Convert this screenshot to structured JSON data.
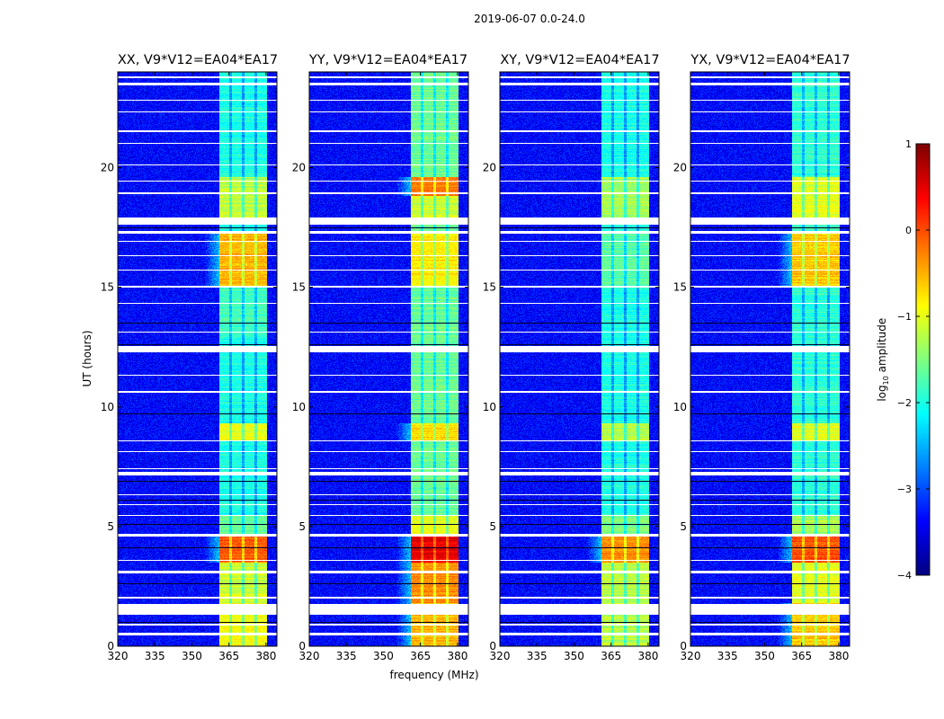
{
  "chart_data": {
    "type": "heatmap",
    "title": "2019-06-07 0.0-24.0",
    "xlabel": "frequency (MHz)",
    "ylabel": "UT (hours)",
    "xlim": [
      320,
      384.4
    ],
    "ylim": [
      0,
      24
    ],
    "x_ticks": [
      "320",
      "335",
      "350",
      "365",
      "380"
    ],
    "y_ticks": [
      "0",
      "5",
      "10",
      "15",
      "20"
    ],
    "colormap": "jet",
    "colorbar": {
      "label_main": "log",
      "label_sub": "10",
      "label_rest": " amplitude",
      "range": [
        -4,
        1
      ],
      "ticks": [
        "1",
        "0",
        "−1",
        "−2",
        "−3",
        "−4"
      ]
    },
    "band_mhz": [
      361,
      380.5
    ],
    "subband_edges_mhz": [
      365.6,
      370.8,
      375.9
    ],
    "noise_floor_log10": -3.35,
    "flagged_hours": [
      [
        0.45,
        0.55
      ],
      [
        0.85,
        0.95
      ],
      [
        1.3,
        1.75
      ],
      [
        2.0,
        2.08
      ],
      [
        3.05,
        3.15
      ],
      [
        3.55,
        3.62
      ],
      [
        4.58,
        4.68
      ],
      [
        5.45,
        5.5
      ],
      [
        5.9,
        5.95
      ],
      [
        6.3,
        6.35
      ],
      [
        7.15,
        7.3
      ],
      [
        7.4,
        7.45
      ],
      [
        8.1,
        8.15
      ],
      [
        8.55,
        8.6
      ],
      [
        10.6,
        10.65
      ],
      [
        11.3,
        11.35
      ],
      [
        12.3,
        12.55
      ],
      [
        13.1,
        13.15
      ],
      [
        14.3,
        14.35
      ],
      [
        15.0,
        15.05
      ],
      [
        15.7,
        15.75
      ],
      [
        16.3,
        16.35
      ],
      [
        16.9,
        16.95
      ],
      [
        17.25,
        17.35
      ],
      [
        17.6,
        17.9
      ],
      [
        18.9,
        18.95
      ],
      [
        19.4,
        19.45
      ],
      [
        20.1,
        20.15
      ],
      [
        21.0,
        21.05
      ],
      [
        21.5,
        21.55
      ],
      [
        22.3,
        22.35
      ],
      [
        22.8,
        22.85
      ],
      [
        23.45,
        23.55
      ],
      [
        23.75,
        23.8
      ]
    ],
    "dark_hours": [
      1.0,
      2.6,
      4.1,
      5.1,
      6.1,
      6.9,
      9.7,
      12.6,
      13.5,
      17.5
    ],
    "panels": [
      {
        "title": "XX, V9*V12=EA04*EA17",
        "band_default": -2.0,
        "segments": [
          [
            0,
            1.8,
            -0.9
          ],
          [
            1.8,
            3.5,
            -1.1
          ],
          [
            3.5,
            4.6,
            -0.1
          ],
          [
            4.6,
            5.5,
            -1.6
          ],
          [
            8.6,
            9.3,
            -1.0
          ],
          [
            13,
            15,
            -1.8
          ],
          [
            15,
            17.3,
            -0.5
          ],
          [
            17.9,
            19.6,
            -1.2
          ]
        ]
      },
      {
        "title": "YY, V9*V12=EA04*EA17",
        "band_default": -1.6,
        "segments": [
          [
            0,
            1.8,
            -0.5
          ],
          [
            1.8,
            3.5,
            -0.3
          ],
          [
            3.5,
            4.6,
            0.5
          ],
          [
            4.6,
            5.5,
            -1.0
          ],
          [
            8.6,
            9.3,
            -0.7
          ],
          [
            15,
            17.3,
            -0.8
          ],
          [
            17.9,
            18.8,
            -1.1
          ],
          [
            18.8,
            19.6,
            -0.2
          ]
        ]
      },
      {
        "title": "XY, V9*V12=EA04*EA17",
        "band_default": -2.0,
        "segments": [
          [
            0,
            1.8,
            -1.2
          ],
          [
            1.8,
            3.5,
            -1.2
          ],
          [
            3.5,
            4.6,
            -0.3
          ],
          [
            4.6,
            5.5,
            -1.5
          ],
          [
            8.6,
            9.3,
            -1.2
          ],
          [
            15,
            17.3,
            -1.7
          ],
          [
            17.9,
            19.6,
            -1.3
          ]
        ]
      },
      {
        "title": "YX, V9*V12=EA04*EA17",
        "band_default": -1.9,
        "segments": [
          [
            0,
            1.8,
            -0.6
          ],
          [
            1.8,
            3.5,
            -1.0
          ],
          [
            3.5,
            4.6,
            0.0
          ],
          [
            4.6,
            5.5,
            -1.3
          ],
          [
            8.6,
            9.3,
            -1.0
          ],
          [
            15,
            17.3,
            -0.6
          ],
          [
            17.9,
            19.6,
            -1.0
          ]
        ]
      }
    ]
  }
}
